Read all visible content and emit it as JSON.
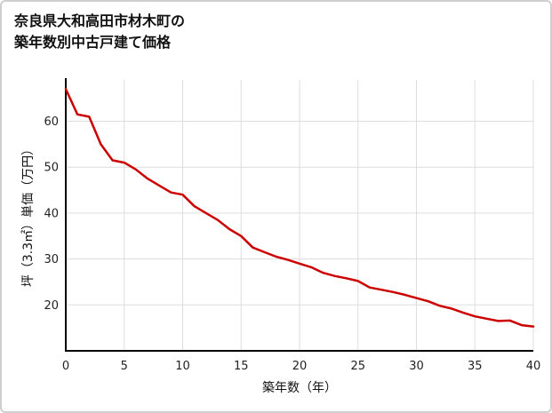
{
  "page": {
    "title_line1": "奈良県大和高田市材木町の",
    "title_line2": "築年数別中古戸建て価格"
  },
  "chart_data": {
    "type": "line",
    "title": "奈良県大和高田市材木町の築年数別中古戸建て価格",
    "xlabel": "築年数（年）",
    "ylabel": "坪（3.3㎡）単価（万円）",
    "x": [
      0,
      1,
      2,
      3,
      4,
      5,
      6,
      7,
      8,
      9,
      10,
      11,
      12,
      13,
      14,
      15,
      16,
      17,
      18,
      19,
      20,
      21,
      22,
      23,
      24,
      25,
      26,
      27,
      28,
      29,
      30,
      31,
      32,
      33,
      34,
      35,
      36,
      37,
      38,
      39,
      40
    ],
    "values": [
      67,
      61.5,
      61,
      55,
      51.5,
      51,
      49.5,
      47.5,
      46,
      44.5,
      44,
      41.5,
      40,
      38.5,
      36.5,
      35,
      32.5,
      31.5,
      30.5,
      29.8,
      29,
      28.2,
      27,
      26.3,
      25.8,
      25.2,
      23.8,
      23.3,
      22.8,
      22.2,
      21.5,
      20.8,
      19.8,
      19.2,
      18.3,
      17.5,
      17,
      16.5,
      16.6,
      15.6,
      15.3
    ],
    "xlim": [
      0,
      40
    ],
    "ylim": [
      10,
      69
    ],
    "x_ticks": [
      0,
      5,
      10,
      15,
      20,
      25,
      30,
      35,
      40
    ],
    "y_ticks": [
      20,
      30,
      40,
      50,
      60
    ],
    "line_color": "#cc0000",
    "grid": true,
    "grid_color": "#dddddd",
    "axis_color": "#000000",
    "legend": "none"
  }
}
